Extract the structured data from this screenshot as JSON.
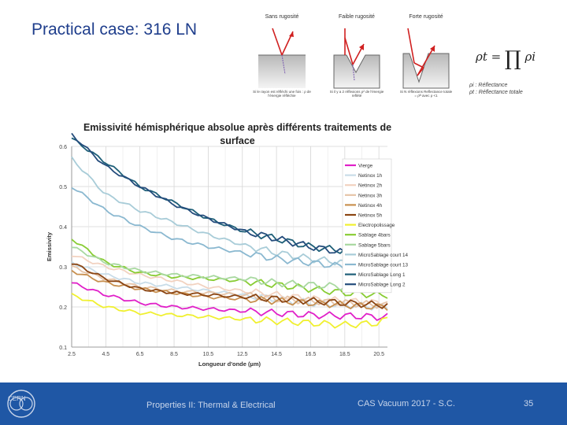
{
  "slide": {
    "title": "Practical case: 316 LN"
  },
  "diagrams": [
    {
      "label": "Sans rugosité",
      "note": "Si le rayon est réfléchi une fois : ρ de l'énergie réfléchie"
    },
    {
      "label": "Faible rugosité",
      "note": "Si il y a 2 réflexions ρ² de l'énergie reflété"
    },
    {
      "label": "Forte rugosité",
      "note": "Si N réflexions Reflectance totale = ρᴺ avec ρ <1"
    }
  ],
  "formula": {
    "lhs": "ρt =",
    "rhs": "ρi"
  },
  "definitions": {
    "line1": "ρi : Réflectance",
    "line2": "ρt : Réflectance totale"
  },
  "chart_data": {
    "type": "line",
    "title": "Emissivité hémisphérique absolue après différents traitements de surface",
    "xlabel": "Longueur d'onde (µm)",
    "ylabel": "Emissivity",
    "xlim": [
      2.5,
      21
    ],
    "ylim": [
      0.1,
      0.6
    ],
    "xticks": [
      "2.5",
      "4.5",
      "6.5",
      "8.5",
      "10.5",
      "12.5",
      "14.5",
      "16.5",
      "18.5",
      "20.5"
    ],
    "yticks": [
      "0.1",
      "0.2",
      "0.3",
      "0.4",
      "0.5",
      "0.6"
    ],
    "grid": true,
    "legend_position": "right",
    "x": [
      2.5,
      4.5,
      6.5,
      8.5,
      10.5,
      12.5,
      14.5,
      16.5,
      18.5,
      20.5,
      21
    ],
    "series": [
      {
        "name": "Vierge",
        "color": "#e020c8",
        "values": [
          0.26,
          0.23,
          0.21,
          0.2,
          0.195,
          0.19,
          0.185,
          0.18,
          0.178,
          0.175,
          0.175
        ]
      },
      {
        "name": "Netinox 1h",
        "color": "#c8dce8",
        "values": [
          0.31,
          0.28,
          0.26,
          0.25,
          0.24,
          0.23,
          0.22,
          0.21,
          0.205,
          0.2,
          0.2
        ]
      },
      {
        "name": "Netinox 2h",
        "color": "#f2d2c0",
        "values": [
          0.33,
          0.3,
          0.28,
          0.265,
          0.25,
          0.24,
          0.23,
          0.22,
          0.215,
          0.21,
          0.21
        ]
      },
      {
        "name": "Netinox 3h",
        "color": "#e6c4a8",
        "values": [
          0.3,
          0.27,
          0.25,
          0.24,
          0.235,
          0.23,
          0.22,
          0.215,
          0.21,
          0.205,
          0.205
        ]
      },
      {
        "name": "Netinox 4h",
        "color": "#c89050",
        "values": [
          0.29,
          0.26,
          0.245,
          0.235,
          0.225,
          0.22,
          0.215,
          0.21,
          0.205,
          0.2,
          0.2
        ]
      },
      {
        "name": "Netinox 5h",
        "color": "#8b4513",
        "values": [
          0.31,
          0.27,
          0.245,
          0.235,
          0.23,
          0.225,
          0.22,
          0.215,
          0.21,
          0.205,
          0.205
        ]
      },
      {
        "name": "Electropolissage",
        "color": "#f0f030",
        "values": [
          0.23,
          0.2,
          0.185,
          0.18,
          0.175,
          0.17,
          0.165,
          0.16,
          0.155,
          0.16,
          0.17
        ]
      },
      {
        "name": "Sablage 4bars",
        "color": "#88cc33",
        "values": [
          0.37,
          0.31,
          0.285,
          0.275,
          0.27,
          0.265,
          0.255,
          0.245,
          0.235,
          0.23,
          0.23
        ]
      },
      {
        "name": "Sablage 5bars",
        "color": "#a8d8a0",
        "values": [
          0.35,
          0.31,
          0.29,
          0.28,
          0.275,
          0.27,
          0.26,
          0.255,
          0.25,
          0.245,
          0.245
        ]
      },
      {
        "name": "MicroSablage court 14",
        "color": "#a8ccd8",
        "values": [
          0.57,
          0.48,
          0.44,
          0.41,
          0.38,
          0.355,
          0.335,
          0.32,
          0.31,
          0.3,
          0.3
        ]
      },
      {
        "name": "MicroSablage court 13",
        "color": "#8ab8d0",
        "values": [
          0.5,
          0.44,
          0.4,
          0.37,
          0.35,
          0.335,
          0.32,
          0.31,
          0.3,
          0.295,
          0.295
        ]
      },
      {
        "name": "MicroSablage Long 1",
        "color": "#1e5f78",
        "values": [
          0.62,
          0.56,
          0.5,
          0.46,
          0.42,
          0.39,
          0.37,
          0.35,
          0.34,
          0.33,
          0.325
        ]
      },
      {
        "name": "MicroSablage Long 2",
        "color": "#244c7c",
        "values": [
          0.63,
          0.55,
          0.5,
          0.455,
          0.42,
          0.39,
          0.37,
          0.35,
          0.335,
          0.325,
          0.32
        ]
      }
    ]
  },
  "footer": {
    "logo_text": "CERN",
    "course": "Properties II: Thermal & Electrical",
    "event": "CAS Vacuum 2017 - S.C.",
    "page": "35"
  }
}
